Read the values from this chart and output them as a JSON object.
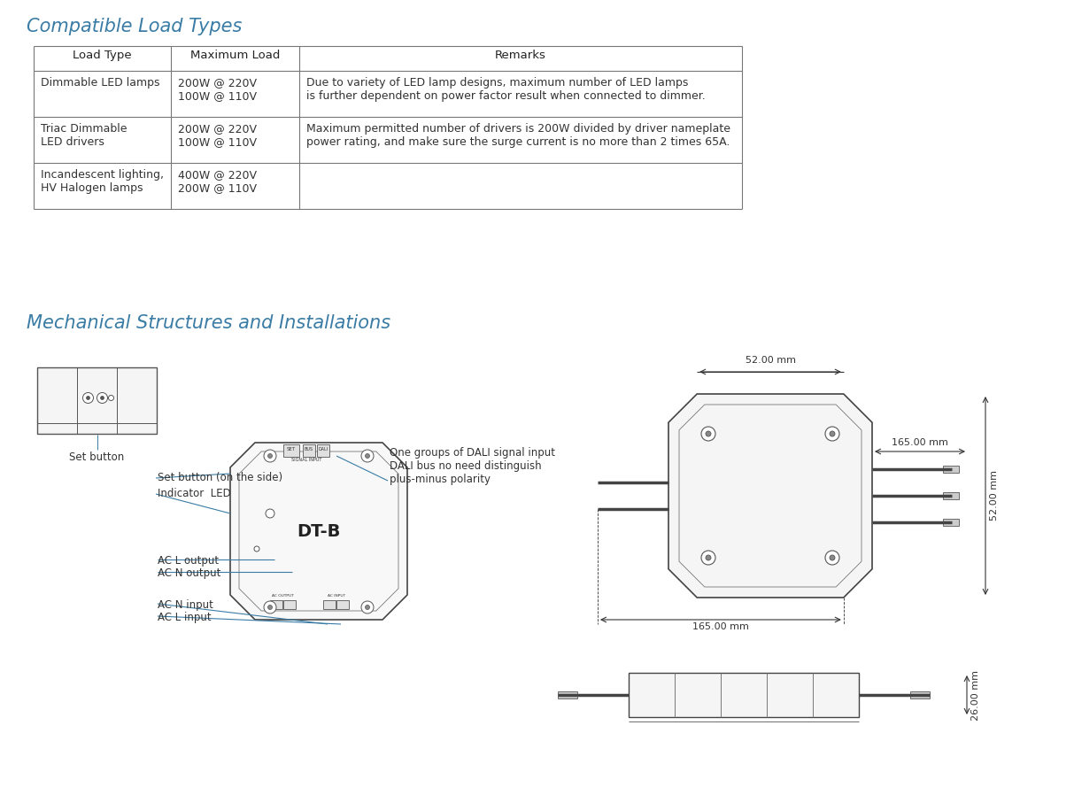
{
  "title1": "Compatible Load Types",
  "title2": "Mechanical Structures and Installations",
  "title_color": "#3a7ca5",
  "table_headers": [
    "Load Type",
    "Maximum Load",
    "Remarks"
  ],
  "table_rows": [
    [
      "Dimmable LED lamps",
      "200W @ 220V\n100W @ 110V",
      "Due to variety of LED lamp designs, maximum number of LED lamps\nis further dependent on power factor result when connected to dimmer."
    ],
    [
      "Triac Dimmable\nLED drivers",
      "200W @ 220V\n100W @ 110V",
      "Maximum permitted number of drivers is 200W divided by driver nameplate\npower rating, and make sure the surge current is no more than 2 times 65A."
    ],
    [
      "Incandescent lighting,\nHV Halogen lamps",
      "400W @ 220V\n200W @ 110V",
      ""
    ]
  ],
  "bg_color": "#ffffff",
  "text_color": "#333333",
  "border_color": "#aaaaaa",
  "header_bg": "#f0f0f0",
  "dali_annotation": "One groups of DALI signal input\nDALI bus no need distinguish\nplus-minus polarity",
  "set_btn_annotation": "Set button (on the side)",
  "indicator_annotation": "Indicator  LED",
  "ac_l_output": "AC L output",
  "ac_n_output": "AC N output",
  "ac_n_input": "AC N input",
  "ac_l_input": "AC L input",
  "set_button_label": "Set button",
  "dt_b_label": "DT-B",
  "dim1": "52.00 mm",
  "dim2": "165.00 mm",
  "dim3": "165.00 mm",
  "dim4": "52.00 mm",
  "dim5": "26.00 mm"
}
